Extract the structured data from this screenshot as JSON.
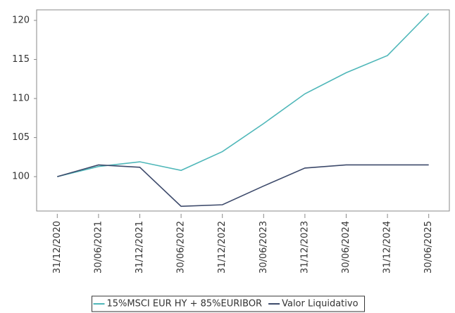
{
  "chart_data": {
    "type": "line",
    "categories": [
      "31/12/2020",
      "30/06/2021",
      "31/12/2021",
      "30/06/2022",
      "31/12/2022",
      "30/06/2023",
      "31/12/2023",
      "30/06/2024",
      "31/12/2024",
      "30/06/2025"
    ],
    "series": [
      {
        "name": "15%MSCI EUR HY + 85%EURIBOR",
        "color": "#4fb7b9",
        "values": [
          100,
          101.3,
          101.9,
          100.8,
          103.2,
          106.8,
          110.6,
          113.3,
          115.5,
          120.9
        ]
      },
      {
        "name": "Valor Liquidativo",
        "color": "#3d4a6b",
        "values": [
          100,
          101.5,
          101.2,
          96.2,
          96.4,
          98.8,
          101.1,
          101.5,
          101.5,
          101.5
        ]
      }
    ],
    "ylim": [
      95.6,
      121.35
    ],
    "yticks": [
      100,
      105,
      110,
      115,
      120
    ],
    "grid": false,
    "legend": "bottom"
  }
}
